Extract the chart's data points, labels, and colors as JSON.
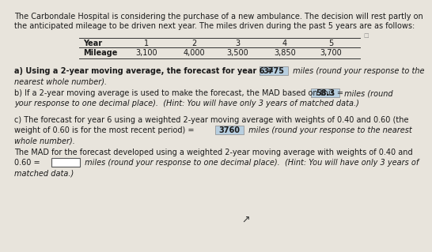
{
  "bg_color": "#e8e4dc",
  "title_line1": "The Carbondale Hospital is considering the purchase of a new ambulance. The decision will rest partly on",
  "title_line2": "the anticipated mileage to be driven next year. The miles driven during the past 5 years are as follows:",
  "table_headers": [
    "Year",
    "1",
    "2",
    "3",
    "4",
    "5"
  ],
  "table_row": [
    "Mileage",
    "3,100",
    "4,000",
    "3,500",
    "3,850",
    "3,700"
  ],
  "answer_a": "3775",
  "answer_b": "58.3",
  "answer_c": "3760",
  "answer_box_color": "#b8cfe0",
  "answer_box_empty_color": "#ffffff",
  "text_color": "#1a1a1a",
  "font_size": 7.0,
  "small_font": 5.5
}
